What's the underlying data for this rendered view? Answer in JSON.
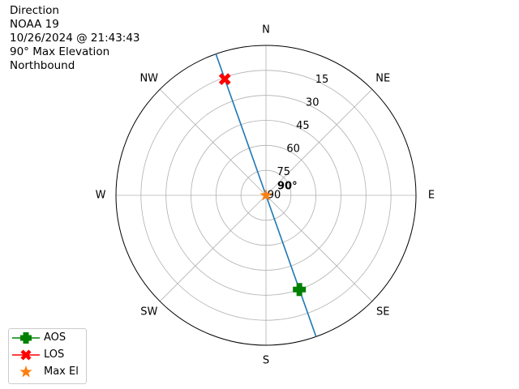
{
  "info": {
    "lines": [
      "Direction",
      "NOAA 19",
      "10/26/2024 @ 21:43:43",
      "90° Max Elevation",
      "Northbound"
    ]
  },
  "chart_data": {
    "type": "polar",
    "direction_labels": [
      {
        "label": "N",
        "azimuth": 0
      },
      {
        "label": "NE",
        "azimuth": 45
      },
      {
        "label": "E",
        "azimuth": 90
      },
      {
        "label": "SE",
        "azimuth": 135
      },
      {
        "label": "S",
        "azimuth": 180
      },
      {
        "label": "SW",
        "azimuth": 225
      },
      {
        "label": "W",
        "azimuth": 270
      },
      {
        "label": "NW",
        "azimuth": 315
      }
    ],
    "elevation_ticks": [
      15,
      30,
      45,
      60,
      75,
      90
    ],
    "radial_axis": "zenith-distance (elevation 90 at center, 0 at rim)",
    "pass_track": [
      {
        "azimuth": 340.5,
        "elevation": 0
      },
      {
        "azimuth": 160.5,
        "elevation": 0
      }
    ],
    "markers": {
      "aos": {
        "azimuth": 160.5,
        "elevation": 30
      },
      "los": {
        "azimuth": 340.5,
        "elevation": 16
      },
      "max_el": {
        "azimuth": 0,
        "elevation": 90,
        "label": "90°"
      }
    },
    "legend": {
      "placement": "lower-left",
      "entries": [
        {
          "key": "aos",
          "label": "AOS"
        },
        {
          "key": "los",
          "label": "LOS"
        },
        {
          "key": "max_el",
          "label": "Max El"
        }
      ]
    },
    "colors": {
      "track": "#1f77b4",
      "aos": "#008000",
      "los": "#ff0000",
      "max_el": "#ff7f0e",
      "grid": "#b0b0b0"
    },
    "grid": true
  }
}
